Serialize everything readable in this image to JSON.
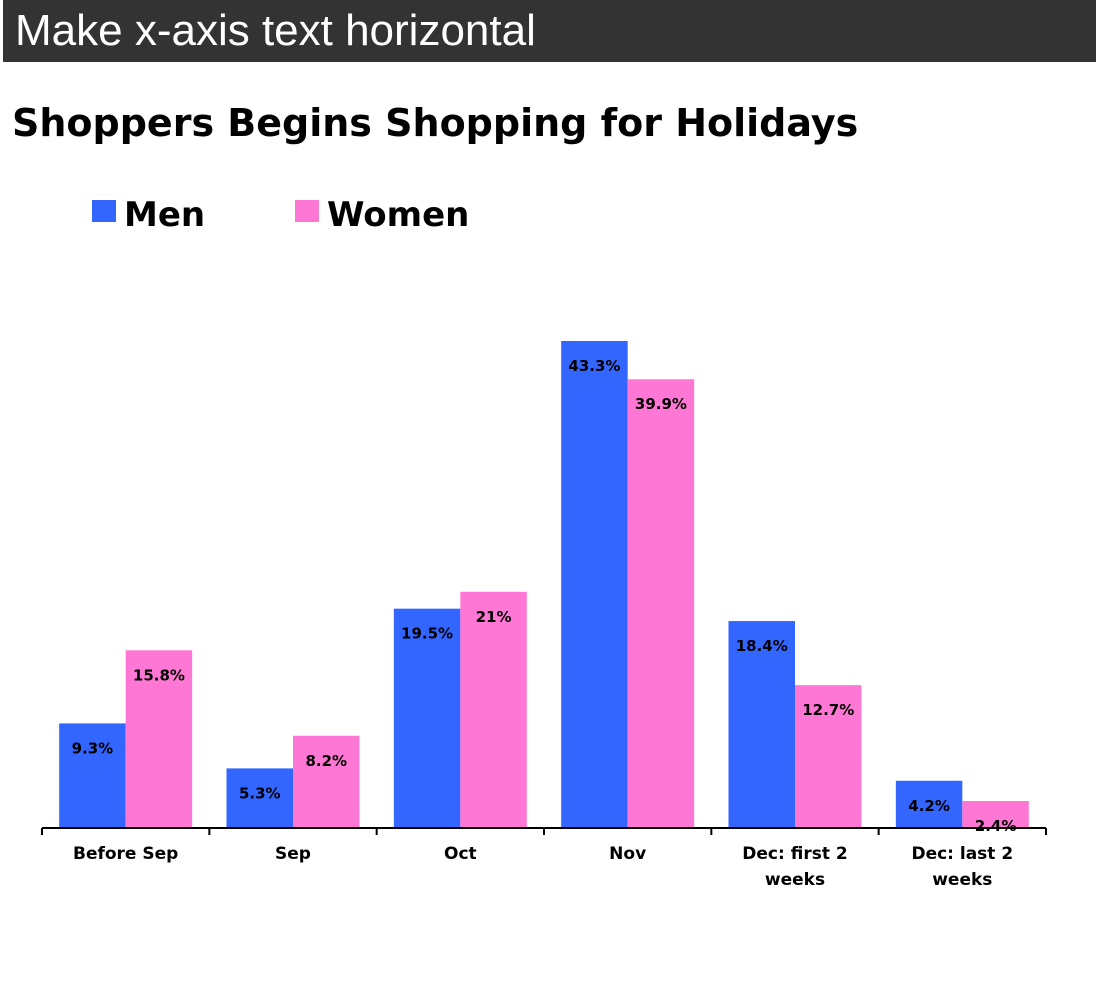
{
  "header": {
    "title": "Make x-axis text horizontal"
  },
  "chart_data": {
    "type": "bar",
    "title": "Shoppers Begins Shopping for Holidays",
    "categories": [
      "Before Sep",
      "Sep",
      "Oct",
      "Nov",
      "Dec: first 2 weeks",
      "Dec: last 2 weeks"
    ],
    "series": [
      {
        "name": "Men",
        "color": "#3366ff",
        "values": [
          9.3,
          5.3,
          19.5,
          43.3,
          18.4,
          4.2
        ],
        "value_labels": [
          "9.3%",
          "5.3%",
          "19.5%",
          "43.3%",
          "18.4%",
          "4.2%"
        ]
      },
      {
        "name": "Women",
        "color": "#ff77d4",
        "values": [
          15.8,
          8.2,
          21,
          39.9,
          12.7,
          2.4
        ],
        "value_labels": [
          "15.8%",
          "8.2%",
          "21%",
          "39.9%",
          "12.7%",
          "2.4%"
        ]
      }
    ]
  }
}
